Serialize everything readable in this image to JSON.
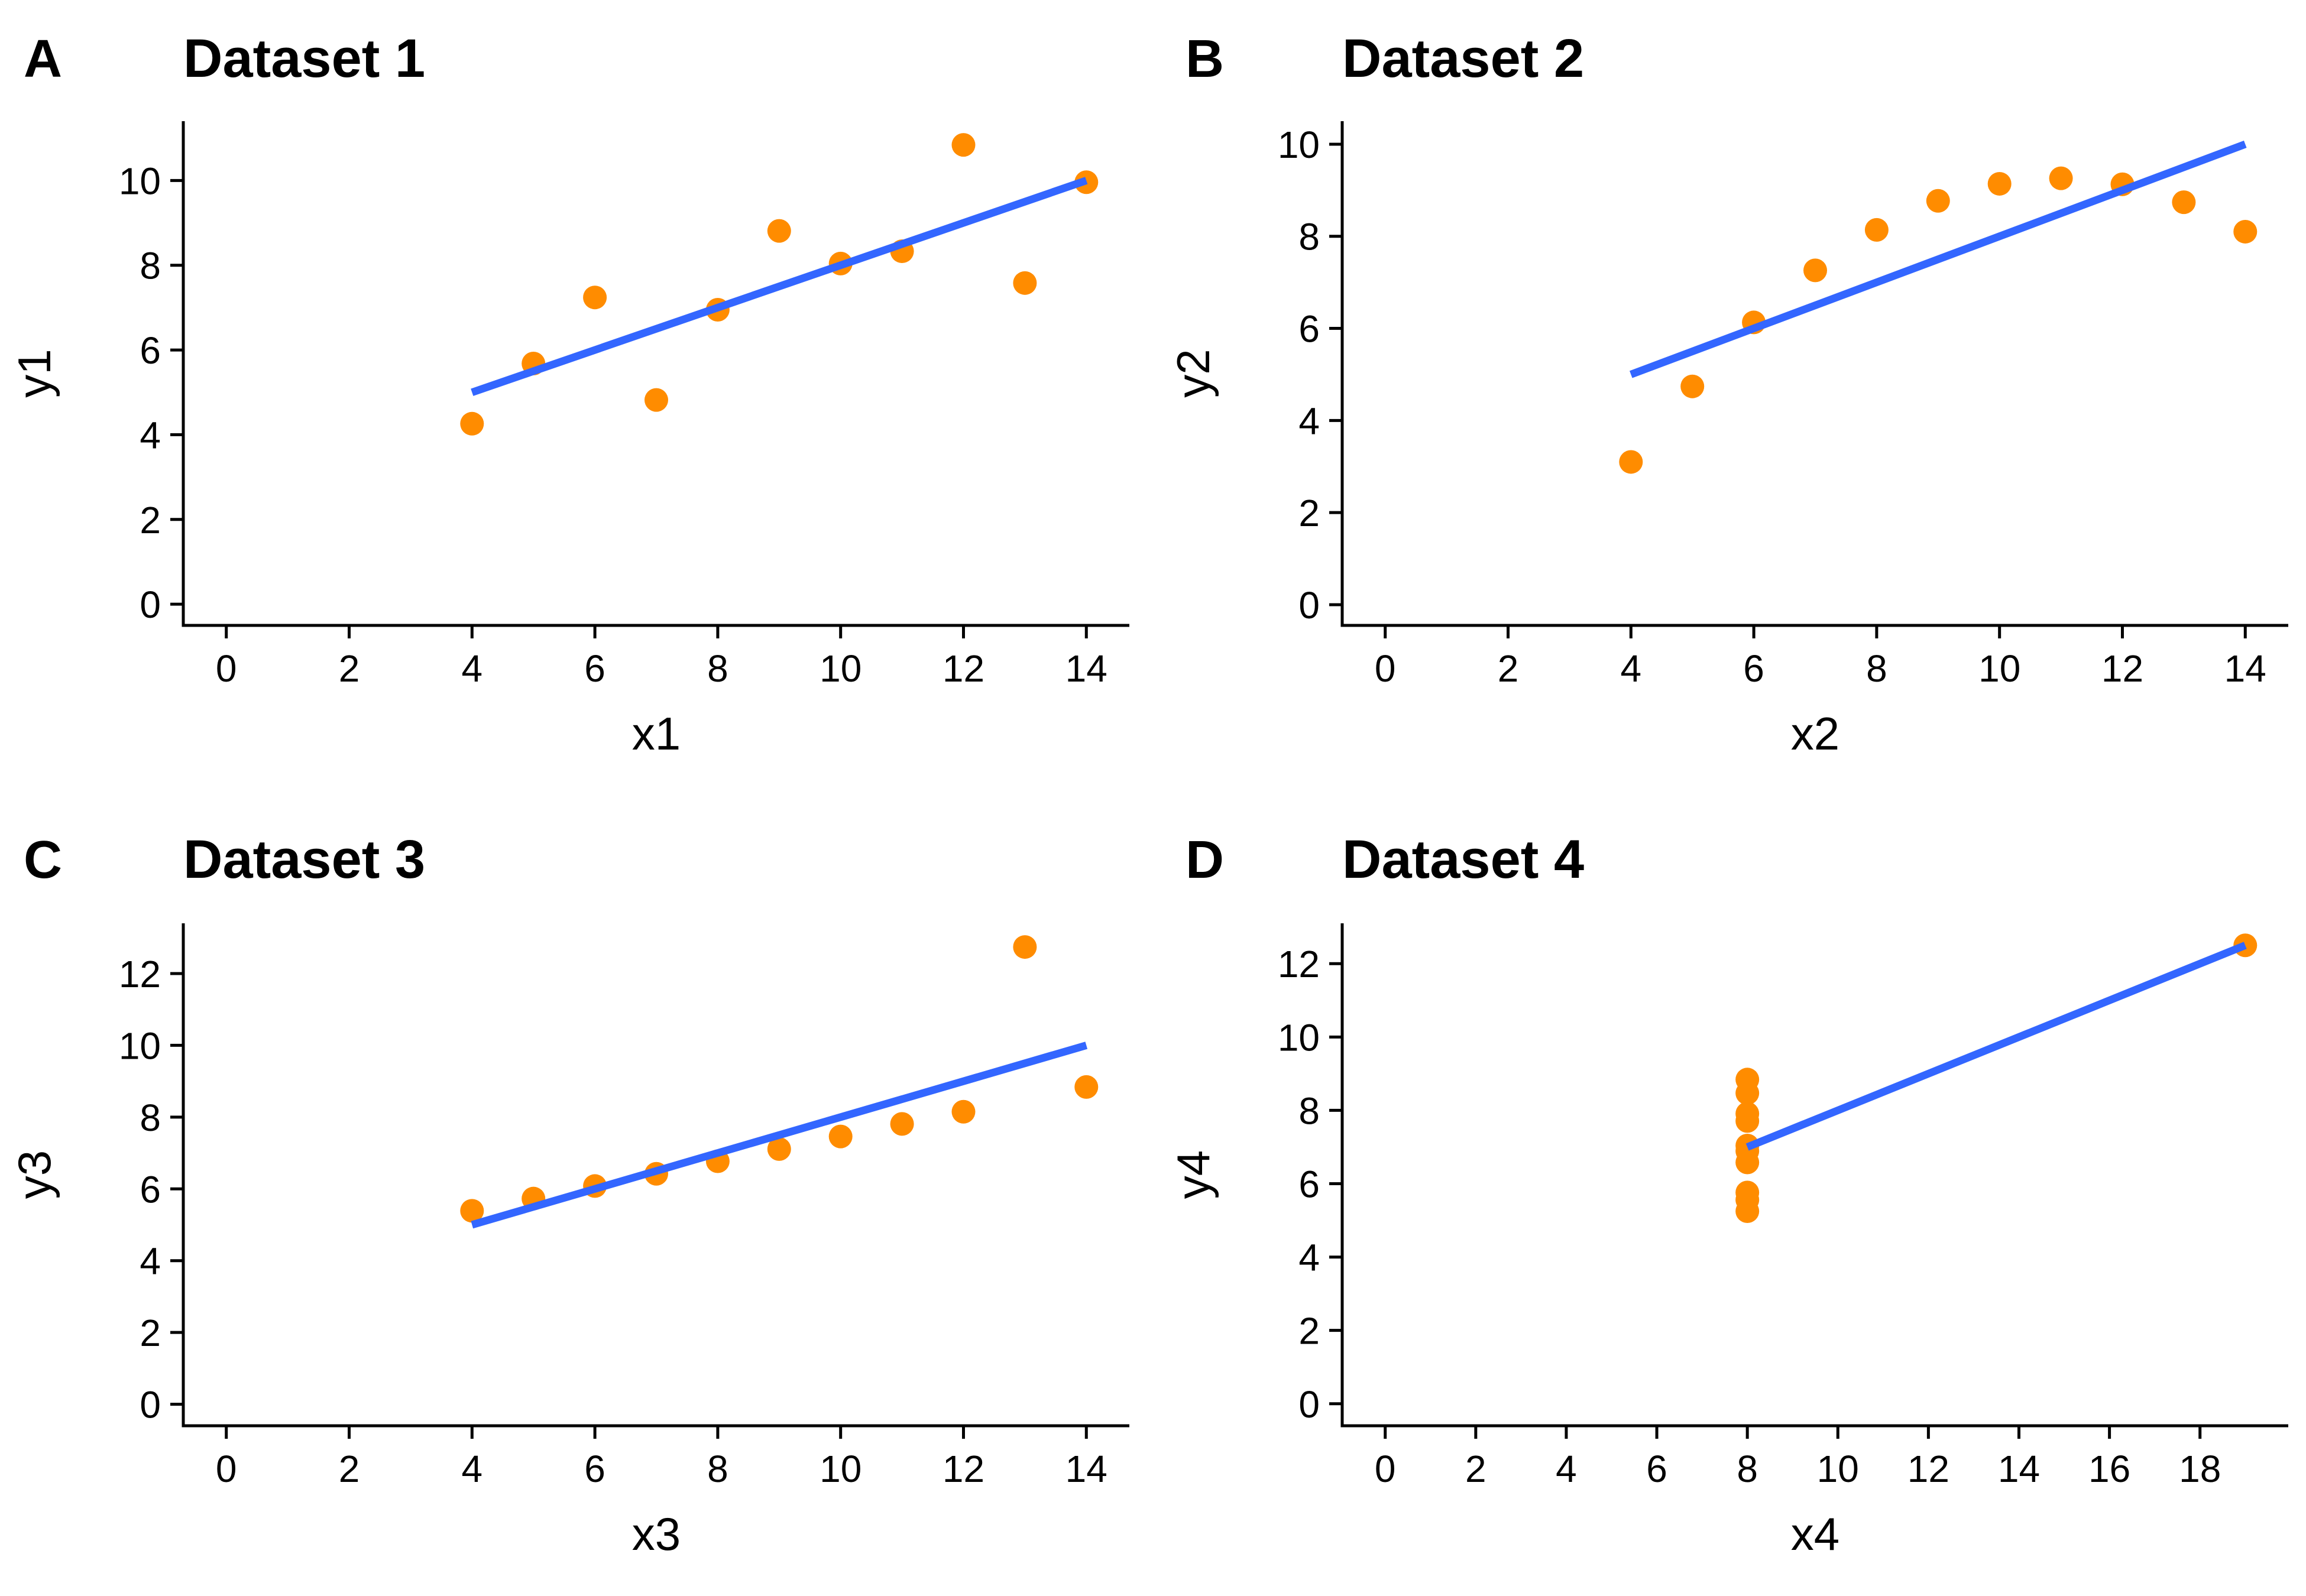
{
  "colors": {
    "points": "#FF8C00",
    "fit_line": "#3366FF",
    "axis": "#000000"
  },
  "chart_data": [
    {
      "type": "scatter",
      "panel_letter": "A",
      "title": "Dataset 1",
      "xlabel": "x1",
      "ylabel": "y1",
      "xlim": [
        -0.7,
        14.7
      ],
      "ylim": [
        -0.5,
        11.4
      ],
      "xticks": [
        0,
        2,
        4,
        6,
        8,
        10,
        12,
        14
      ],
      "yticks": [
        0,
        2,
        4,
        6,
        8,
        10
      ],
      "x": [
        10,
        8,
        13,
        9,
        11,
        14,
        6,
        4,
        12,
        7,
        5
      ],
      "y": [
        8.04,
        6.95,
        7.58,
        8.81,
        8.33,
        9.96,
        7.24,
        4.26,
        10.84,
        4.82,
        5.68
      ],
      "fit": {
        "x": [
          4,
          14
        ],
        "y": [
          5.0,
          10.0
        ]
      },
      "grid": false
    },
    {
      "type": "scatter",
      "panel_letter": "B",
      "title": "Dataset 2",
      "xlabel": "x2",
      "ylabel": "y2",
      "xlim": [
        -0.7,
        14.7
      ],
      "ylim": [
        -0.45,
        10.5
      ],
      "xticks": [
        0,
        2,
        4,
        6,
        8,
        10,
        12,
        14
      ],
      "yticks": [
        0,
        2,
        4,
        6,
        8,
        10
      ],
      "x": [
        10,
        8,
        13,
        9,
        11,
        14,
        6,
        4,
        12,
        7,
        5
      ],
      "y": [
        9.14,
        8.14,
        8.74,
        8.77,
        9.26,
        8.1,
        6.13,
        3.1,
        9.13,
        7.26,
        4.74
      ],
      "fit": {
        "x": [
          4,
          14
        ],
        "y": [
          5.0,
          10.0
        ]
      },
      "grid": false
    },
    {
      "type": "scatter",
      "panel_letter": "C",
      "title": "Dataset 3",
      "xlabel": "x3",
      "ylabel": "y3",
      "xlim": [
        -0.7,
        14.7
      ],
      "ylim": [
        -0.6,
        13.4
      ],
      "xticks": [
        0,
        2,
        4,
        6,
        8,
        10,
        12,
        14
      ],
      "yticks": [
        0,
        2,
        4,
        6,
        8,
        10,
        12
      ],
      "x": [
        10,
        8,
        13,
        9,
        11,
        14,
        6,
        4,
        12,
        7,
        5
      ],
      "y": [
        7.46,
        6.77,
        12.74,
        7.11,
        7.81,
        8.84,
        6.08,
        5.39,
        8.15,
        6.42,
        5.73
      ],
      "fit": {
        "x": [
          4,
          14
        ],
        "y": [
          5.0,
          10.0
        ]
      },
      "grid": false
    },
    {
      "type": "scatter",
      "panel_letter": "D",
      "title": "Dataset 4",
      "xlabel": "x4",
      "ylabel": "y4",
      "xlim": [
        -0.95,
        19.95
      ],
      "ylim": [
        -0.6,
        13.1
      ],
      "xticks": [
        0,
        2,
        4,
        6,
        8,
        10,
        12,
        14,
        16,
        18
      ],
      "yticks": [
        0,
        2,
        4,
        6,
        8,
        10,
        12
      ],
      "x": [
        8,
        8,
        8,
        8,
        8,
        8,
        8,
        19,
        8,
        8,
        8
      ],
      "y": [
        6.58,
        5.76,
        7.71,
        8.84,
        8.47,
        7.04,
        5.25,
        12.5,
        5.56,
        7.91,
        6.89
      ],
      "fit": {
        "x": [
          8,
          19
        ],
        "y": [
          7.0,
          12.5
        ]
      },
      "grid": false
    }
  ]
}
